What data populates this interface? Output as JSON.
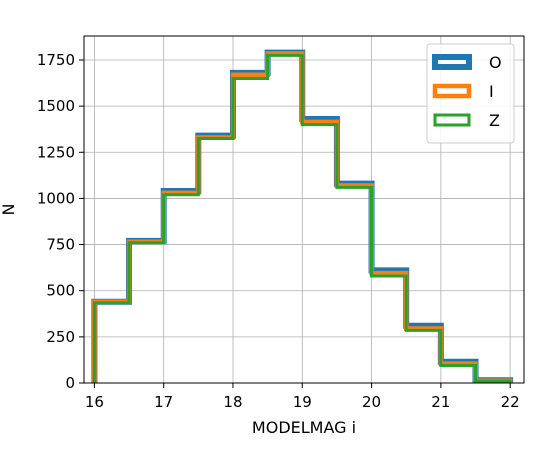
{
  "chart_data": {
    "type": "histogram",
    "xlabel": "MODELMAG i",
    "ylabel": "N",
    "xlim": [
      15.85,
      22.2
    ],
    "ylim": [
      0,
      1880
    ],
    "xticks": [
      16,
      17,
      18,
      19,
      20,
      21,
      22
    ],
    "xtick_labels": [
      "16",
      "17",
      "18",
      "19",
      "20",
      "21",
      "22"
    ],
    "yticks": [
      0,
      250,
      500,
      750,
      1000,
      1250,
      1500,
      1750
    ],
    "ytick_labels": [
      "0",
      "250",
      "500",
      "750",
      "1000",
      "1250",
      "1500",
      "1750"
    ],
    "grid": true,
    "legend_position": "top-right",
    "bin_edges": [
      16,
      16.5,
      17,
      17.5,
      18,
      18.5,
      19,
      19.5,
      20,
      20.5,
      21,
      21.5,
      22
    ],
    "series": [
      {
        "name": "O",
        "color": "#1f77b4",
        "values": [
          440,
          770,
          1040,
          1340,
          1680,
          1790,
          1430,
          1080,
          610,
          310,
          115,
          15
        ]
      },
      {
        "name": "I",
        "color": "#ff7f0e",
        "values": [
          440,
          765,
          1030,
          1330,
          1670,
          1785,
          1415,
          1070,
          595,
          295,
          105,
          12
        ]
      },
      {
        "name": "Z",
        "color": "#2ca02c",
        "values": [
          435,
          760,
          1020,
          1325,
          1650,
          1775,
          1400,
          1060,
          580,
          285,
          95,
          10
        ]
      }
    ]
  }
}
